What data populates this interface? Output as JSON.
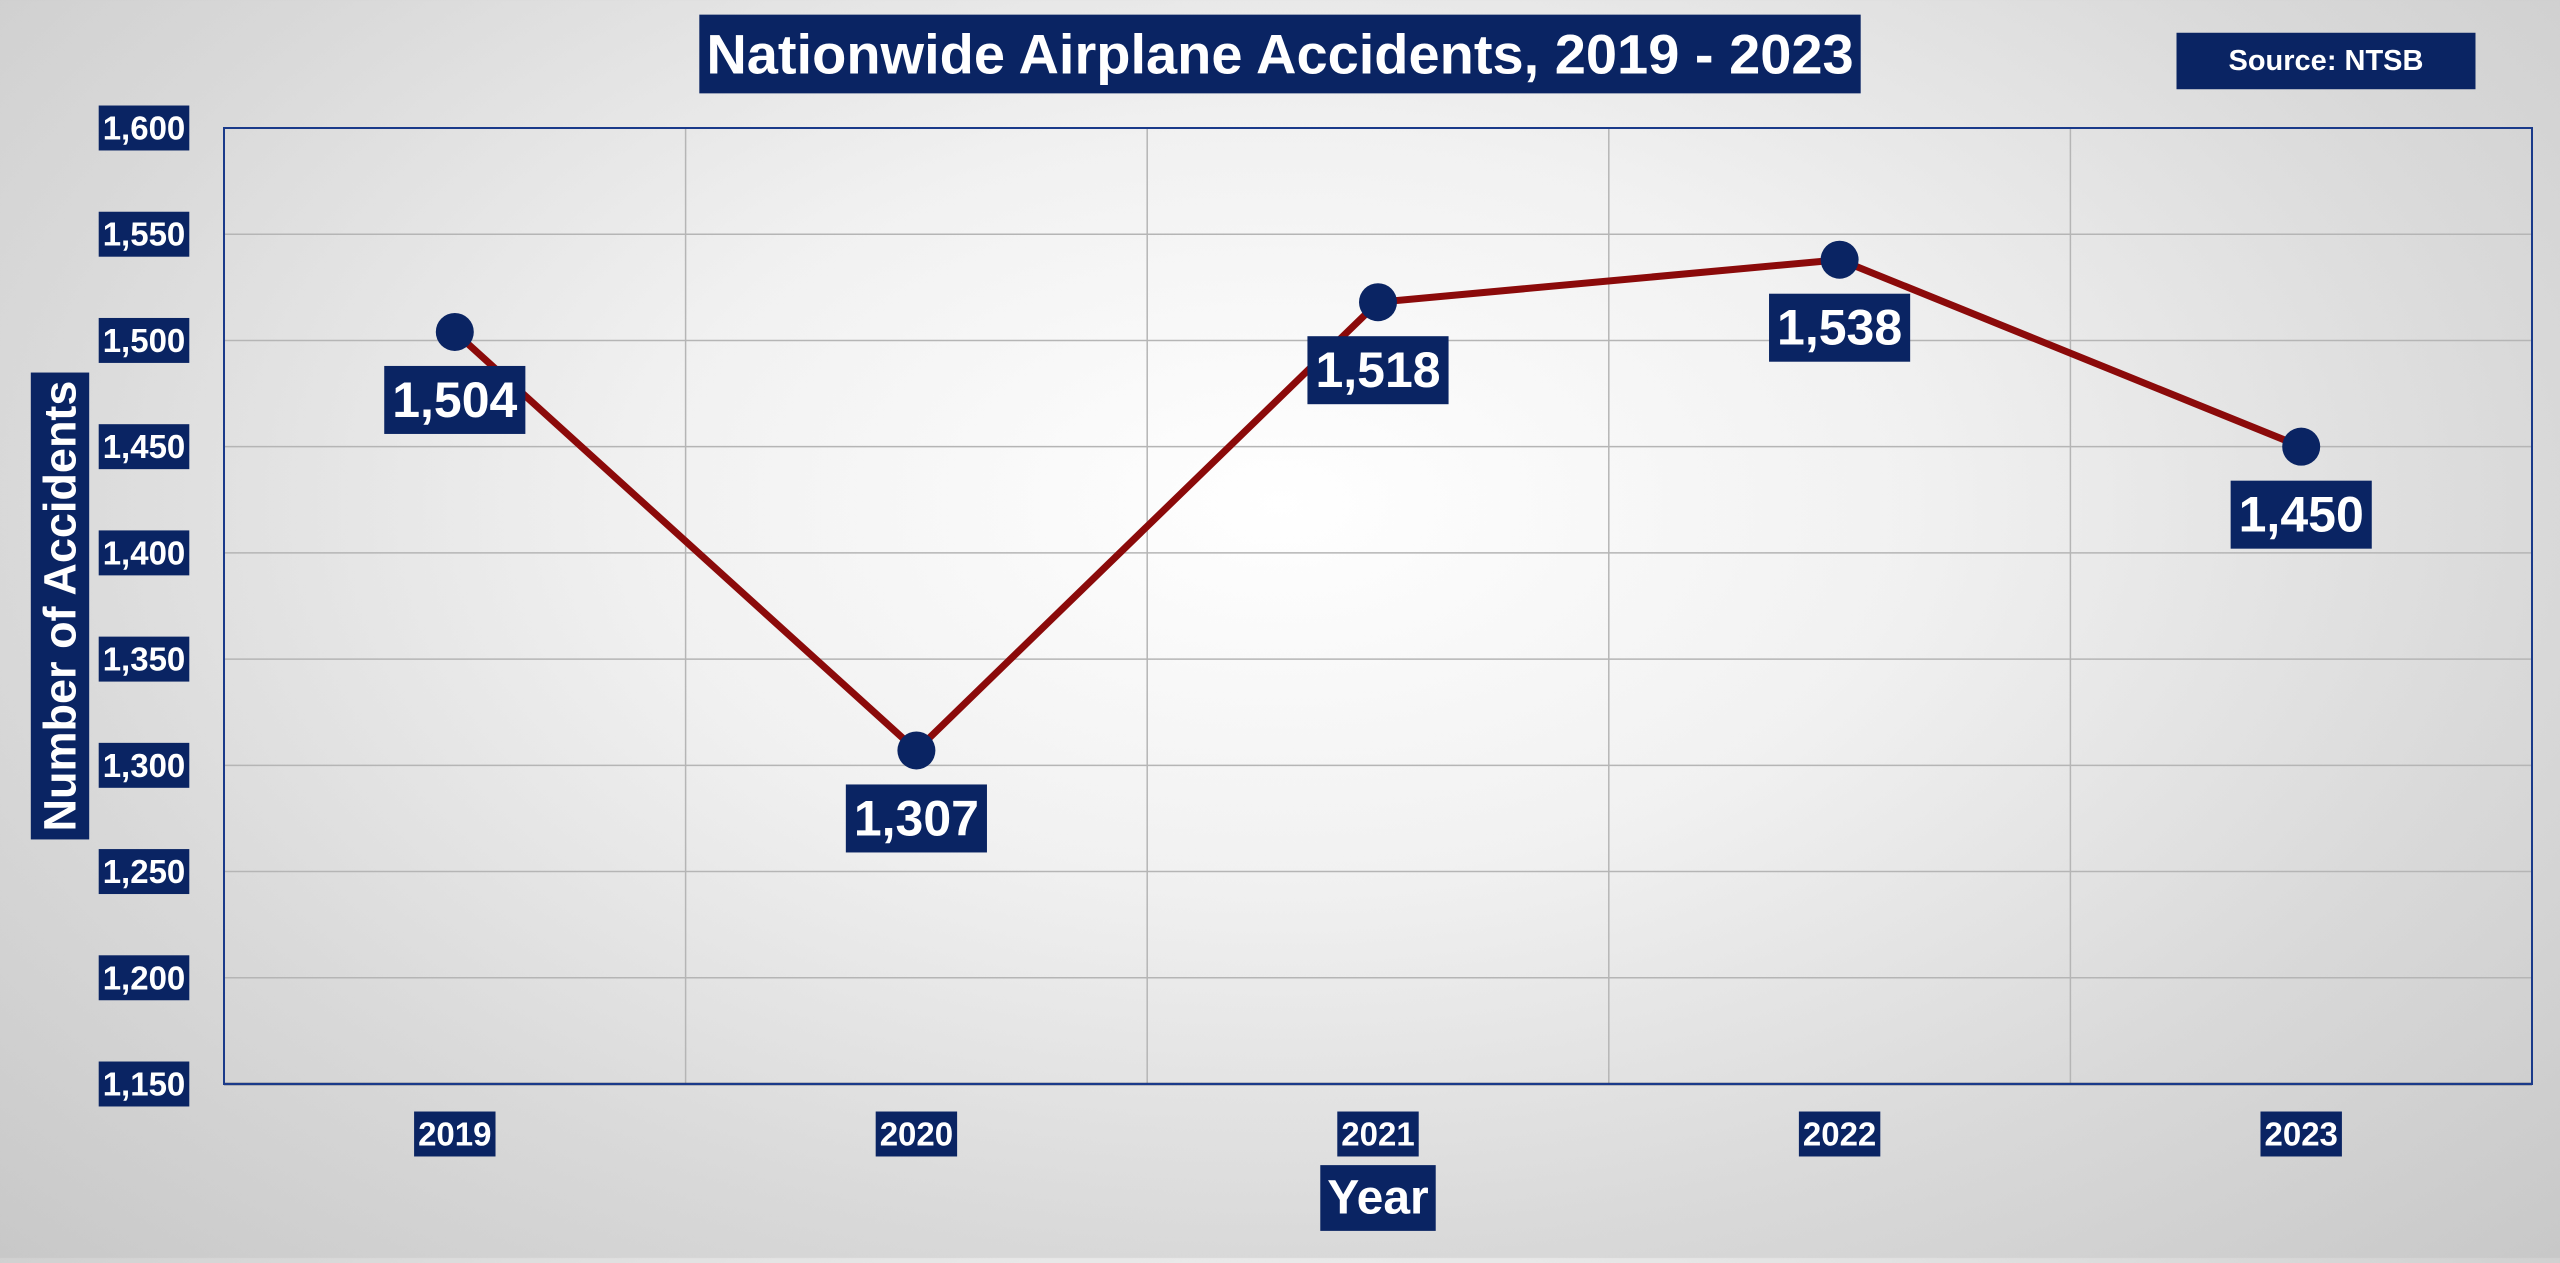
{
  "title": "Nationwide Airplane Accidents, 2019 - 2023",
  "source": "Source: NTSB",
  "colors": {
    "label_bg": "#0a2463",
    "label_text": "#ffffff",
    "line": "#8b0a0a",
    "marker": "#0a2463",
    "grid": "#b5b5b5",
    "axis": "#1a3a8a"
  },
  "chart_data": {
    "type": "line",
    "title": "Nationwide Airplane Accidents, 2019 - 2023",
    "xlabel": "Year",
    "ylabel": "Number of Accidents",
    "categories": [
      "2019",
      "2020",
      "2021",
      "2022",
      "2023"
    ],
    "series": [
      {
        "values": [
          1504,
          1307,
          1518,
          1538,
          1450
        ],
        "data_labels": [
          "1,504",
          "1,307",
          "1,518",
          "1,538",
          "1,450"
        ]
      }
    ],
    "ylim": [
      1150,
      1600
    ],
    "yticks": [
      1150,
      1200,
      1250,
      1300,
      1350,
      1400,
      1450,
      1500,
      1550,
      1600
    ],
    "ytick_labels": [
      "1,150",
      "1,200",
      "1,250",
      "1,300",
      "1,350",
      "1,400",
      "1,450",
      "1,500",
      "1,550",
      "1,600"
    ],
    "grid": true,
    "legend": "none",
    "data_label_position": "below"
  }
}
